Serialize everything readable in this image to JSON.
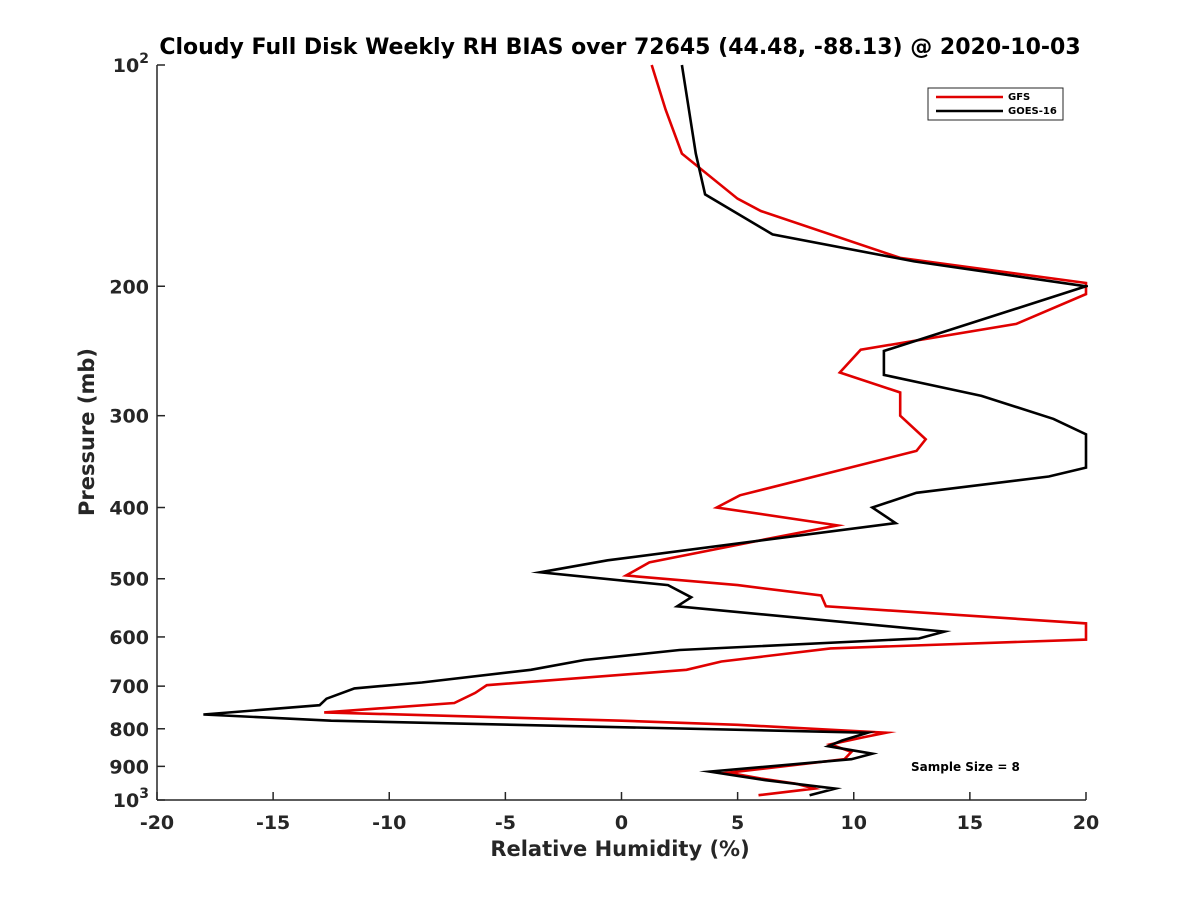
{
  "chart_data": {
    "type": "line",
    "title": "Cloudy Full Disk Weekly RH BIAS over 72645 (44.48, -88.13) @ 2020-10-03",
    "xlabel": "Relative Humidity (%)",
    "ylabel": "Pressure (mb)",
    "xlim": [
      -20,
      20
    ],
    "ylim": [
      1000,
      100
    ],
    "yscale": "log",
    "y_reversed": true,
    "grid": false,
    "legend_position": "top-right",
    "x_ticks": [
      "-20",
      "-15",
      "-10",
      "-5",
      "0",
      "5",
      "10",
      "15",
      "20"
    ],
    "x_tick_values": [
      -20,
      -15,
      -10,
      -5,
      0,
      5,
      10,
      15,
      20
    ],
    "y_ticks": [
      {
        "value": 100,
        "base": "10",
        "exp": "2"
      },
      {
        "value": 200,
        "label": "200"
      },
      {
        "value": 300,
        "label": "300"
      },
      {
        "value": 400,
        "label": "400"
      },
      {
        "value": 500,
        "label": "500"
      },
      {
        "value": 600,
        "label": "600"
      },
      {
        "value": 700,
        "label": "700"
      },
      {
        "value": 800,
        "label": "800"
      },
      {
        "value": 900,
        "label": "900"
      },
      {
        "value": 1000,
        "base": "10",
        "exp": "3"
      }
    ],
    "annotation": "Sample Size = 8",
    "series": [
      {
        "name": "GFS",
        "color": "#e00000",
        "points": [
          [
            1.3,
            100
          ],
          [
            1.9,
            115
          ],
          [
            2.6,
            132
          ],
          [
            5,
            152
          ],
          [
            6.0,
            158
          ],
          [
            12.0,
            183
          ],
          [
            20.0,
            198
          ],
          [
            20.0,
            205
          ],
          [
            17.0,
            225
          ],
          [
            10.3,
            244
          ],
          [
            9.4,
            262
          ],
          [
            12.0,
            279
          ],
          [
            12.0,
            300
          ],
          [
            13.1,
            323
          ],
          [
            12.7,
            335
          ],
          [
            5.1,
            385
          ],
          [
            4.1,
            400
          ],
          [
            9.3,
            423
          ],
          [
            6.5,
            440
          ],
          [
            1.2,
            475
          ],
          [
            0.2,
            495
          ],
          [
            5.0,
            510
          ],
          [
            8.6,
            527
          ],
          [
            8.8,
            545
          ],
          [
            20.0,
            575
          ],
          [
            20.0,
            605
          ],
          [
            9.0,
            622
          ],
          [
            4.3,
            648
          ],
          [
            2.8,
            665
          ],
          [
            -5.8,
            698
          ],
          [
            -6.3,
            715
          ],
          [
            -7.2,
            738
          ],
          [
            -12.8,
            760
          ],
          [
            0,
            780
          ],
          [
            5.0,
            790
          ],
          [
            11.4,
            810
          ],
          [
            10.4,
            822
          ],
          [
            9.0,
            840
          ],
          [
            9.9,
            860
          ],
          [
            9.6,
            880
          ],
          [
            4.6,
            918
          ],
          [
            6.0,
            935
          ],
          [
            7.5,
            950
          ],
          [
            8.3,
            965
          ],
          [
            5.9,
            985
          ]
        ]
      },
      {
        "name": "GOES-16",
        "color": "#000000",
        "points": [
          [
            2.6,
            100
          ],
          [
            2.9,
            115
          ],
          [
            3.2,
            132
          ],
          [
            3.6,
            150
          ],
          [
            6.5,
            170
          ],
          [
            12.6,
            185
          ],
          [
            20.0,
            200
          ],
          [
            11.3,
            245
          ],
          [
            11.3,
            264
          ],
          [
            15.5,
            282
          ],
          [
            18.6,
            303
          ],
          [
            20.0,
            318
          ],
          [
            20.0,
            353
          ],
          [
            18.4,
            363
          ],
          [
            12.7,
            382
          ],
          [
            10.8,
            400
          ],
          [
            11.8,
            420
          ],
          [
            -0.6,
            472
          ],
          [
            -3.5,
            490
          ],
          [
            2.0,
            510
          ],
          [
            3.0,
            530
          ],
          [
            2.4,
            545
          ],
          [
            13.9,
            590
          ],
          [
            12.8,
            603
          ],
          [
            2.5,
            625
          ],
          [
            -1.6,
            645
          ],
          [
            -3.9,
            665
          ],
          [
            -8.6,
            692
          ],
          [
            -11.5,
            705
          ],
          [
            -12.7,
            728
          ],
          [
            -13.0,
            743
          ],
          [
            -18.0,
            765
          ],
          [
            -12.5,
            780
          ],
          [
            10.6,
            810
          ],
          [
            9.5,
            830
          ],
          [
            8.9,
            845
          ],
          [
            10.8,
            865
          ],
          [
            9.9,
            880
          ],
          [
            3.8,
            915
          ],
          [
            6.2,
            940
          ],
          [
            9.2,
            965
          ],
          [
            8.1,
            985
          ]
        ]
      }
    ]
  }
}
